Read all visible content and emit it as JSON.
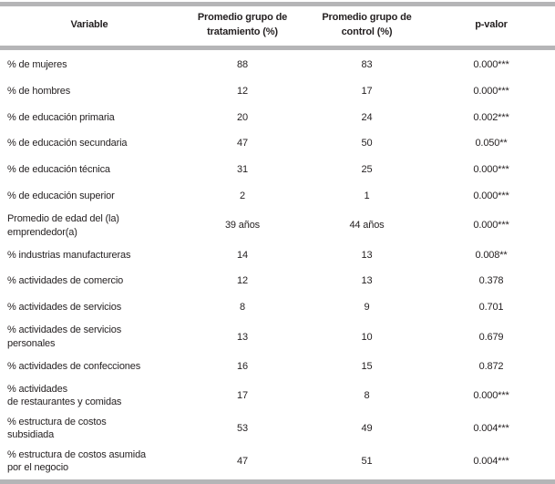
{
  "table": {
    "colors": {
      "rule": "#b5b5b7",
      "text": "#231f20",
      "background": "#ffffff"
    },
    "columns": [
      {
        "label": "Variable"
      },
      {
        "label": "Promedio grupo de\ntratamiento (%)"
      },
      {
        "label": "Promedio grupo de\ncontrol (%)"
      },
      {
        "label": "p-valor"
      }
    ],
    "rows": [
      {
        "variable": "% de mujeres",
        "treatment": "88",
        "control": "83",
        "p_value": "0.000***"
      },
      {
        "variable": "% de hombres",
        "treatment": "12",
        "control": "17",
        "p_value": "0.000***"
      },
      {
        "variable": "% de educación primaria",
        "treatment": "20",
        "control": "24",
        "p_value": "0.002***"
      },
      {
        "variable": "% de educación secundaria",
        "treatment": "47",
        "control": "50",
        "p_value": "0.050**"
      },
      {
        "variable": "% de educación técnica",
        "treatment": "31",
        "control": "25",
        "p_value": "0.000***"
      },
      {
        "variable": "% de educación superior",
        "treatment": "2",
        "control": "1",
        "p_value": "0.000***"
      },
      {
        "variable": "Promedio de edad del (la)\nemprendedor(a)",
        "treatment": "39 años",
        "control": "44 años",
        "p_value": "0.000***"
      },
      {
        "variable": "% industrias manufactureras",
        "treatment": "14",
        "control": "13",
        "p_value": "0.008**"
      },
      {
        "variable": "% actividades de comercio",
        "treatment": "12",
        "control": "13",
        "p_value": "0.378"
      },
      {
        "variable": "% actividades de servicios",
        "treatment": "8",
        "control": "9",
        "p_value": "0.701"
      },
      {
        "variable": "% actividades de servicios\npersonales",
        "treatment": "13",
        "control": "10",
        "p_value": "0.679"
      },
      {
        "variable": "% actividades de confecciones",
        "treatment": "16",
        "control": "15",
        "p_value": "0.872"
      },
      {
        "variable": "% actividades\nde restaurantes y comidas",
        "treatment": "17",
        "control": "8",
        "p_value": "0.000***"
      },
      {
        "variable": "% estructura de costos\nsubsidiada",
        "treatment": "53",
        "control": "49",
        "p_value": "0.004***"
      },
      {
        "variable": "% estructura de costos asumida\npor el negocio",
        "treatment": "47",
        "control": "51",
        "p_value": "0.004***"
      }
    ]
  }
}
